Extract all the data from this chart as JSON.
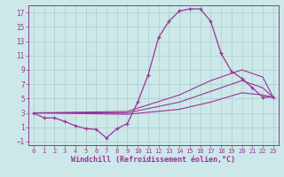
{
  "xlabel": "Windchill (Refroidissement éolien,°C)",
  "background_color": "#cce8e8",
  "line_color": "#993399",
  "grid_color": "#aacccc",
  "xlim": [
    -0.5,
    23.5
  ],
  "ylim": [
    -1.5,
    18.0
  ],
  "yticks": [
    -1,
    1,
    3,
    5,
    7,
    9,
    11,
    13,
    15,
    17
  ],
  "xticks": [
    0,
    1,
    2,
    3,
    4,
    5,
    6,
    7,
    8,
    9,
    10,
    11,
    12,
    13,
    14,
    15,
    16,
    17,
    18,
    19,
    20,
    21,
    22,
    23
  ],
  "curve1_x": [
    0,
    1,
    2,
    3,
    4,
    5,
    6,
    7,
    8,
    9,
    10,
    11,
    12,
    13,
    14,
    15,
    16,
    17,
    18,
    19,
    20,
    21,
    22,
    23
  ],
  "curve1_y": [
    3.0,
    2.3,
    2.3,
    1.8,
    1.2,
    0.8,
    0.7,
    -0.5,
    0.8,
    1.5,
    4.5,
    8.3,
    13.5,
    15.8,
    17.2,
    17.5,
    17.5,
    15.8,
    11.3,
    8.8,
    7.8,
    6.5,
    5.2,
    5.2
  ],
  "curve2_x": [
    0,
    9,
    14,
    17,
    20,
    22,
    23
  ],
  "curve2_y": [
    3.0,
    3.2,
    5.5,
    7.5,
    9.0,
    8.0,
    5.2
  ],
  "curve3_x": [
    0,
    9,
    14,
    17,
    20,
    22,
    23
  ],
  "curve3_y": [
    3.0,
    3.0,
    4.5,
    6.0,
    7.5,
    6.5,
    5.2
  ],
  "curve4_x": [
    0,
    9,
    14,
    17,
    20,
    22,
    23
  ],
  "curve4_y": [
    3.0,
    2.8,
    3.5,
    4.5,
    5.8,
    5.5,
    5.2
  ],
  "tick_fontsize_x": 5.0,
  "tick_fontsize_y": 5.5,
  "xlabel_fontsize": 6.0,
  "lw_main": 0.9,
  "lw_secondary": 0.8,
  "marker_size": 3.5
}
